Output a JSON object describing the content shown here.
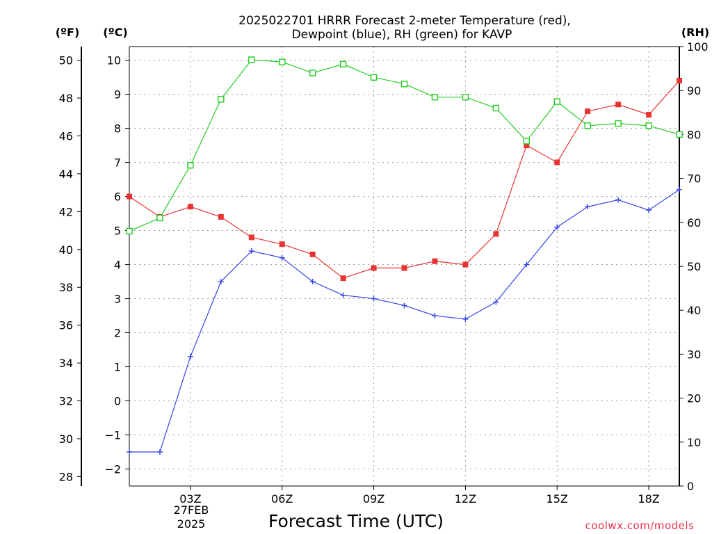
{
  "chart_data": {
    "type": "line",
    "title_line1": "2025022701 HRRR Forecast 2-meter Temperature (red),",
    "title_line2": "Dewpoint (blue), RH (green) for KAVP",
    "xlabel": "Forecast Time (UTC)",
    "x_hours": [
      1,
      2,
      3,
      4,
      5,
      6,
      7,
      8,
      9,
      10,
      11,
      12,
      13,
      14,
      15,
      16,
      17,
      18,
      19
    ],
    "xlim": [
      1,
      19
    ],
    "x_tick_hours": [
      3,
      6,
      9,
      12,
      15,
      18
    ],
    "x_tick_labels": [
      "03Z",
      "06Z",
      "09Z",
      "12Z",
      "15Z",
      "18Z"
    ],
    "date_label_line1": "27FEB",
    "date_label_line2": "2025",
    "left_axis_unit": "(ºC)",
    "far_left_axis_unit": "(ºF)",
    "right_axis_unit": "(RH)",
    "ylim_c": [
      -2.5,
      10.4
    ],
    "yticks_c": [
      "−2",
      "−1",
      "0",
      "1",
      "2",
      "3",
      "4",
      "5",
      "6",
      "7",
      "8",
      "9",
      "10"
    ],
    "yticks_f": [
      "28",
      "30",
      "32",
      "34",
      "36",
      "38",
      "40",
      "42",
      "44",
      "46",
      "48",
      "50"
    ],
    "yticks_rh": [
      "0",
      "10",
      "20",
      "30",
      "40",
      "50",
      "60",
      "70",
      "80",
      "90",
      "100"
    ],
    "series": [
      {
        "name": "Temperature (red)",
        "axis": "c",
        "color": "#e83333",
        "marker": "filled-square",
        "values": [
          6.0,
          5.4,
          5.7,
          5.4,
          4.8,
          4.6,
          4.3,
          3.6,
          3.9,
          3.9,
          4.1,
          4.0,
          4.9,
          7.5,
          7.0,
          8.5,
          8.7,
          8.4,
          9.4
        ]
      },
      {
        "name": "Dewpoint (blue)",
        "axis": "c",
        "color": "#3344e8",
        "marker": "plus",
        "values": [
          -1.5,
          -1.5,
          1.3,
          3.5,
          4.4,
          4.2,
          3.5,
          3.1,
          3.0,
          2.8,
          2.5,
          2.4,
          2.9,
          4.0,
          5.1,
          5.7,
          5.9,
          5.6,
          6.2
        ]
      },
      {
        "name": "RH (green)",
        "axis": "rh",
        "color": "#22cc22",
        "marker": "open-square",
        "values": [
          58,
          61,
          73,
          88,
          97,
          96.5,
          94,
          96,
          93,
          91.5,
          88.5,
          88.5,
          86,
          78.5,
          87.5,
          82,
          82.5,
          82,
          80
        ]
      }
    ]
  },
  "footer": {
    "credit": "coolwx.com/models"
  }
}
